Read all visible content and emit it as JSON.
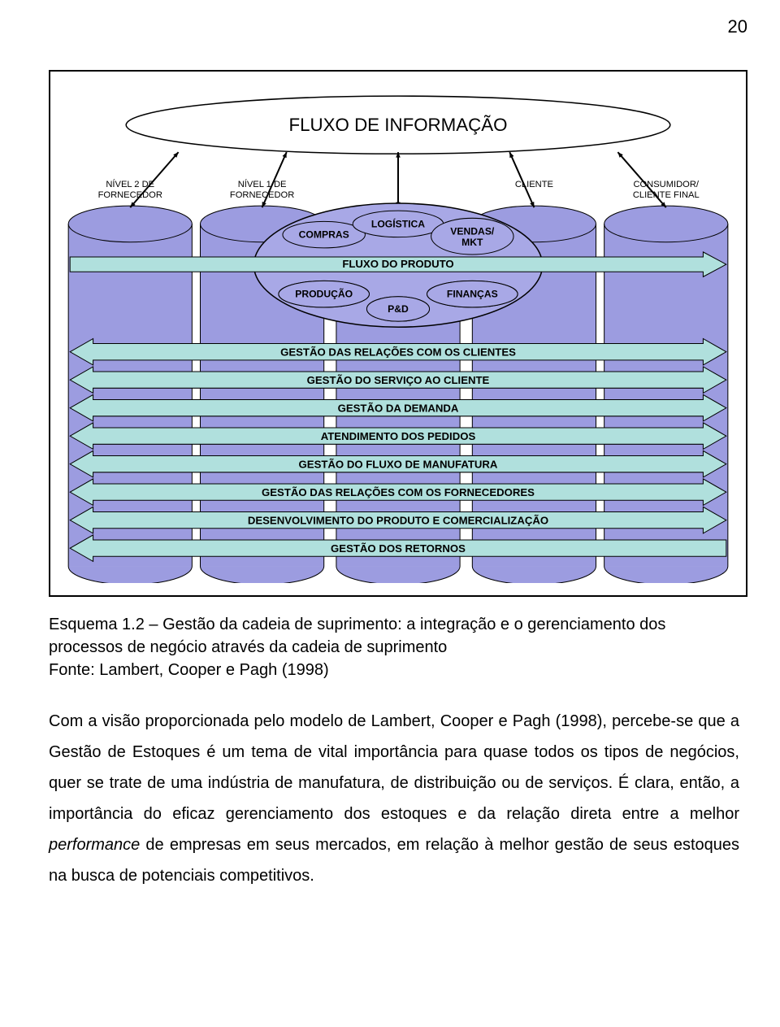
{
  "page_number": "20",
  "diagram": {
    "colors": {
      "cylinder_fill": "#9c9ce0",
      "cylinder_stroke": "#000000",
      "ellipse_fill": "#a8a8e6",
      "ellipse_stroke": "#000000",
      "big_ellipse_fill": "#ffffff",
      "arrow_band_fill": "#b0e0dd",
      "arrow_band_stroke": "#000000",
      "text_color": "#000000",
      "bg": "#ffffff"
    },
    "top_ellipse_label": "FLUXO DE INFORMAÇÃO",
    "cylinders": [
      {
        "top_label_lines": [
          "NÍVEL 2 DE",
          "FORNECEDOR"
        ]
      },
      {
        "top_label_lines": [
          "NÍVEL 1 DE",
          "FORNECEDOR"
        ]
      },
      {
        "top_label_lines": []
      },
      {
        "top_label_lines": [
          "CLIENTE"
        ]
      },
      {
        "top_label_lines": [
          "CONSUMIDOR/",
          "CLIENTE FINAL"
        ]
      }
    ],
    "center_ellipse": {
      "sub_ellipses": [
        "COMPRAS",
        "LOGÍSTICA",
        "VENDAS/\nMKT",
        "PRODUÇÃO",
        "P&D",
        "FINANÇAS"
      ],
      "flow_label": "FLUXO DO PRODUTO"
    },
    "process_bands": [
      "GESTÃO DAS RELAÇÕES COM OS CLIENTES",
      "GESTÃO DO SERVIÇO AO CLIENTE",
      "GESTÃO DA DEMANDA",
      "ATENDIMENTO DOS PEDIDOS",
      "GESTÃO DO FLUXO DE MANUFATURA",
      "GESTÃO DAS RELAÇÕES COM OS FORNECEDORES",
      "DESENVOLVIMENTO DO PRODUTO E COMERCIALIZAÇÃO",
      "GESTÃO DOS RETORNOS"
    ]
  },
  "caption_lines": [
    "Esquema 1.2 – Gestão da cadeia de suprimento: a integração e o gerenciamento dos",
    "processos de negócio através da cadeia de suprimento",
    "Fonte: Lambert, Cooper e Pagh (1998)"
  ],
  "body_paragraph": "Com a visão proporcionada pelo modelo de Lambert, Cooper e Pagh (1998), percebe-se que a Gestão de Estoques é um tema de vital importância para quase todos os tipos de negócios, quer se trate de uma indústria de manufatura, de distribuição ou de serviços. É clara, então, a importância do eficaz gerenciamento dos estoques e da relação direta entre a melhor <em>performance</em> de empresas em seus mercados, em relação à melhor gestão de seus estoques na busca de potenciais competitivos."
}
